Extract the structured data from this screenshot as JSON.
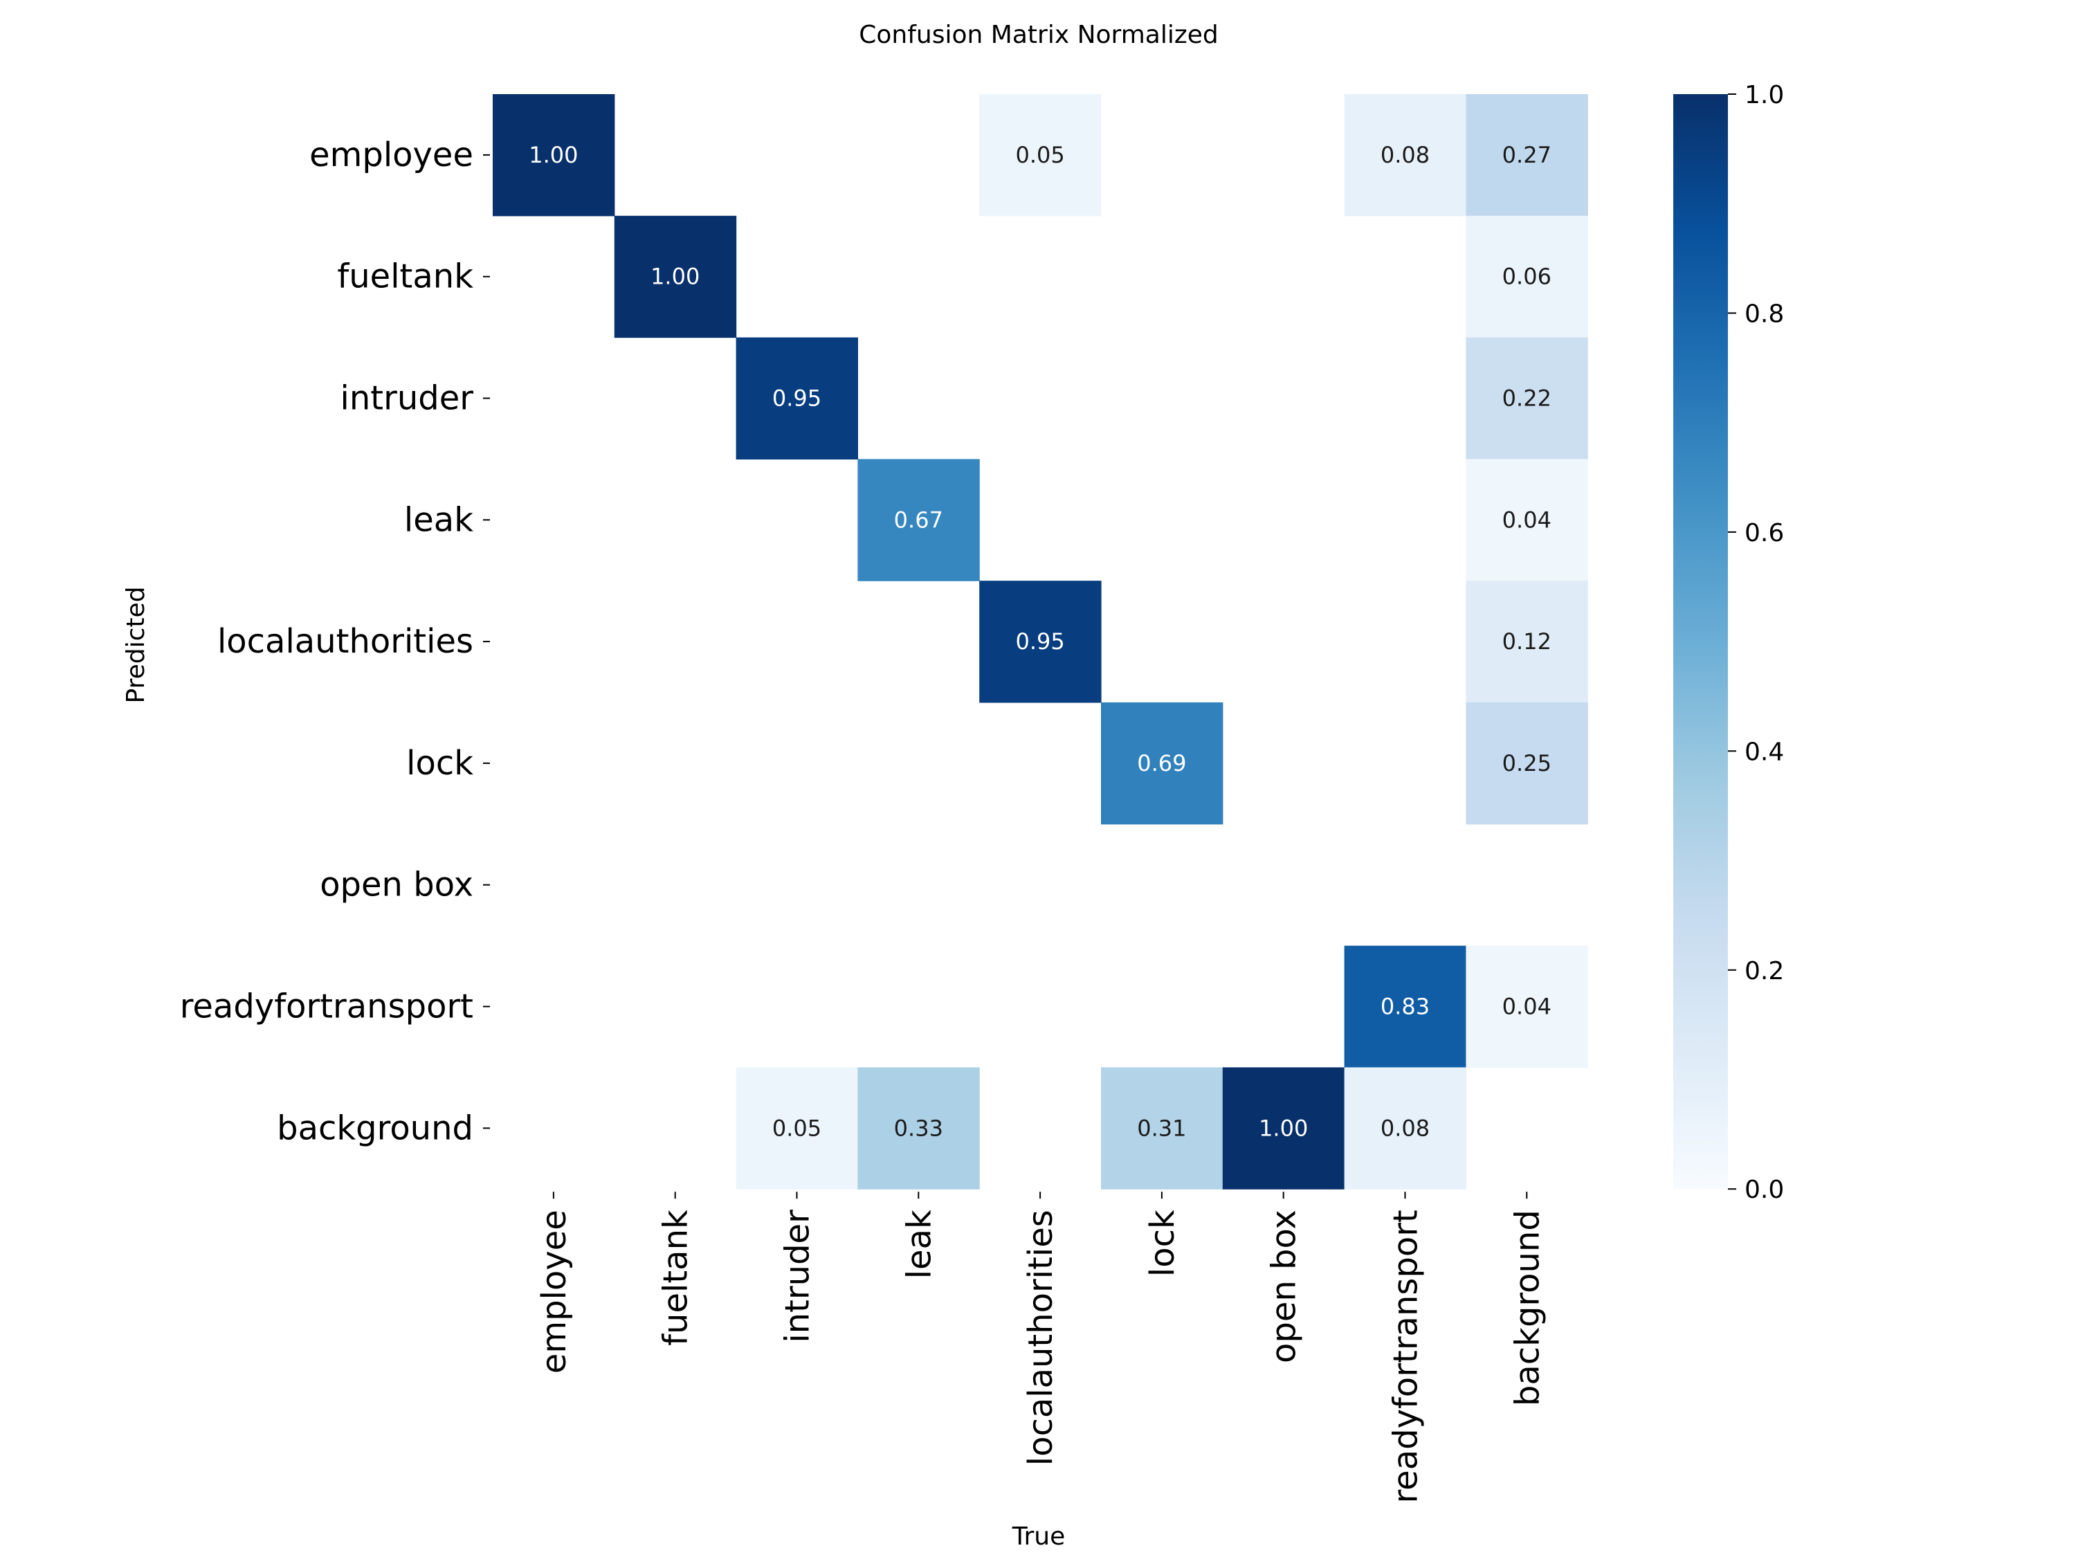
{
  "chart_data": {
    "type": "heatmap",
    "title": "Confusion Matrix Normalized",
    "xlabel": "True",
    "ylabel": "Predicted",
    "x_categories": [
      "employee",
      "fueltank",
      "intruder",
      "leak",
      "localauthorities",
      "lock",
      "open box",
      "readyfortransport",
      "background"
    ],
    "y_categories": [
      "employee",
      "fueltank",
      "intruder",
      "leak",
      "localauthorities",
      "lock",
      "open box",
      "readyfortransport",
      "background"
    ],
    "values": [
      [
        1.0,
        null,
        null,
        null,
        0.05,
        null,
        null,
        0.08,
        0.27
      ],
      [
        null,
        1.0,
        null,
        null,
        null,
        null,
        null,
        null,
        0.06
      ],
      [
        null,
        null,
        0.95,
        null,
        null,
        null,
        null,
        null,
        0.22
      ],
      [
        null,
        null,
        null,
        0.67,
        null,
        null,
        null,
        null,
        0.04
      ],
      [
        null,
        null,
        null,
        null,
        0.95,
        null,
        null,
        null,
        0.12
      ],
      [
        null,
        null,
        null,
        null,
        null,
        0.69,
        null,
        null,
        0.25
      ],
      [
        null,
        null,
        null,
        null,
        null,
        null,
        null,
        null,
        null
      ],
      [
        null,
        null,
        null,
        null,
        null,
        null,
        null,
        0.83,
        0.04
      ],
      [
        null,
        null,
        0.05,
        0.33,
        null,
        0.31,
        1.0,
        0.08,
        null
      ]
    ],
    "colormap": "Blues",
    "colorbar": {
      "range": [
        0.0,
        1.0
      ],
      "ticks": [
        0.0,
        0.2,
        0.4,
        0.6,
        0.8,
        1.0
      ],
      "tick_labels": [
        "0.0",
        "0.2",
        "0.4",
        "0.6",
        "0.8",
        "1.0"
      ]
    },
    "grid": false,
    "legend": "colorbar-right"
  }
}
